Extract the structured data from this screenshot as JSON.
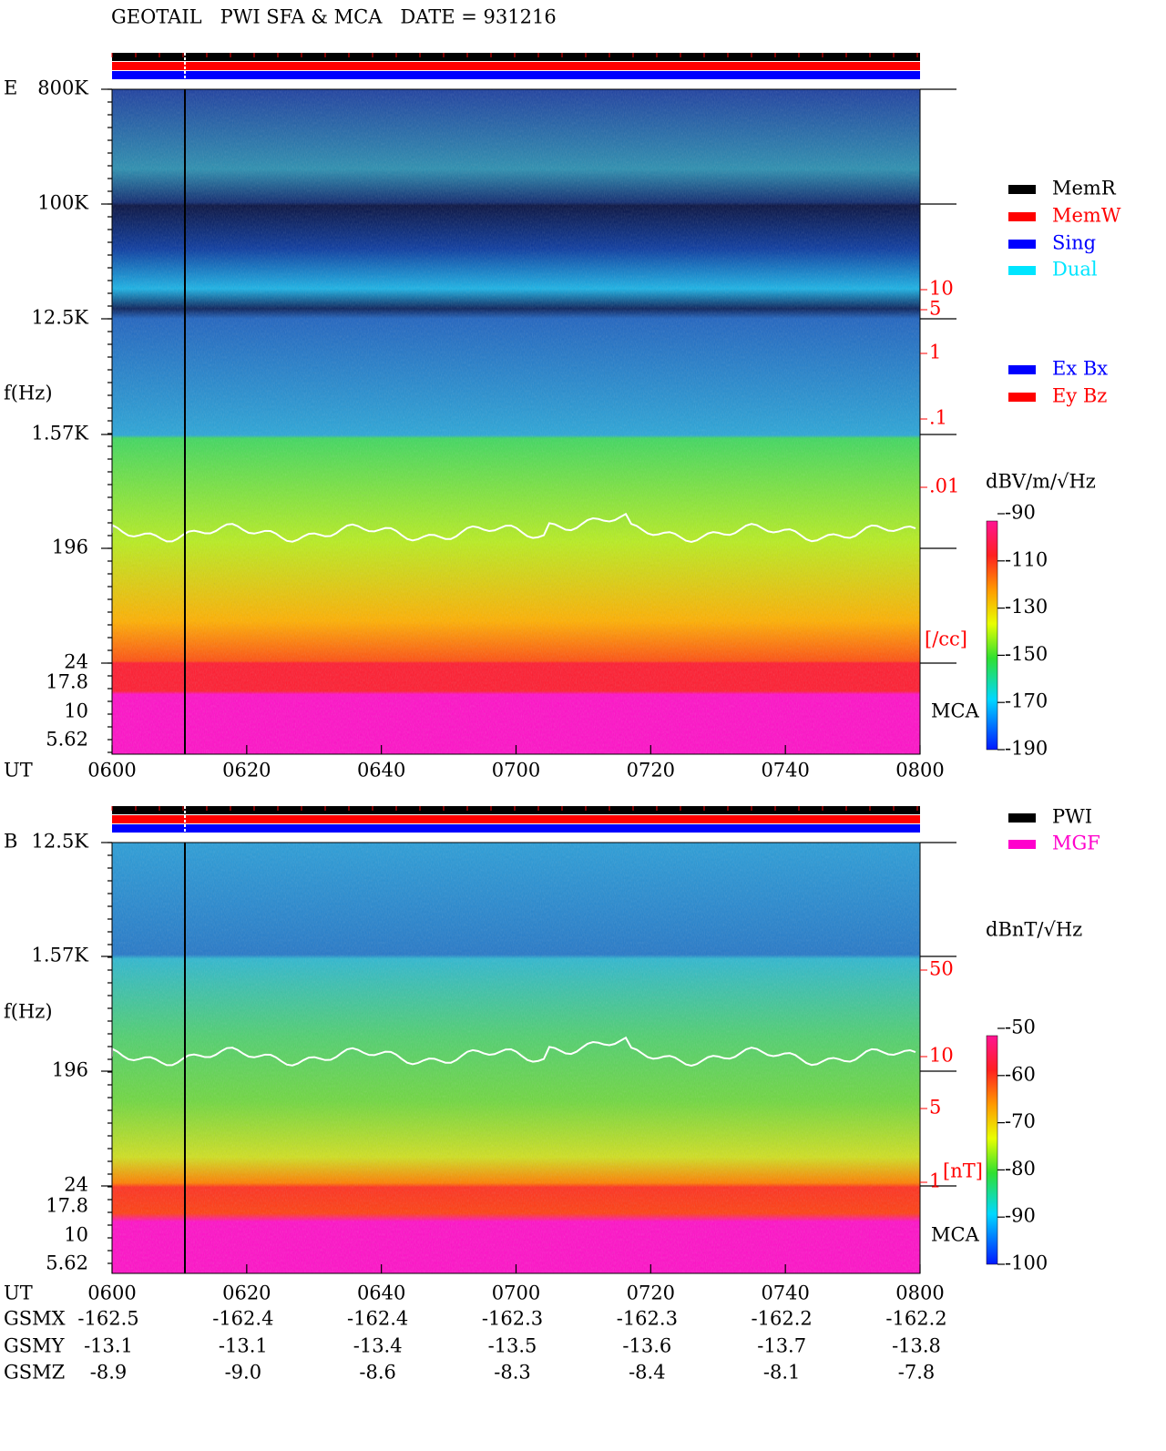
{
  "title": "GEOTAIL   PWI SFA & MCA   DATE = 931216",
  "panels": [
    {
      "label": "E",
      "y_labels": [
        "800K",
        "100K",
        "12.5K",
        "1.57K",
        "196",
        "24",
        "17.8",
        "10",
        "5.62"
      ],
      "y_axis_title": "f(Hz)",
      "right_labels": [
        "10",
        "5",
        "1",
        ".1",
        ".01"
      ],
      "right_unit": "[/cc]",
      "mca_label": "MCA",
      "legends": [
        [
          {
            "label": "MemR",
            "color": "#000000"
          },
          {
            "label": "MemW",
            "color": "#ff0000"
          },
          {
            "label": "Sing",
            "color": "#0000ff"
          },
          {
            "label": "Dual",
            "color": "#00e5ff"
          }
        ],
        [
          {
            "label": "Ex Bx",
            "color": "#0000ff"
          },
          {
            "label": "Ey Bz",
            "color": "#ff0000"
          }
        ]
      ],
      "colorbar": {
        "unit": "dBV/m/√Hz",
        "labels": [
          "-90",
          "-110",
          "-130",
          "-150",
          "-170",
          "-190"
        ]
      }
    },
    {
      "label": "B",
      "y_labels": [
        "12.5K",
        "1.57K",
        "196",
        "24",
        "17.8",
        "10",
        "5.62"
      ],
      "y_axis_title": "f(Hz)",
      "right_labels": [
        "50",
        "10",
        "5",
        "1"
      ],
      "right_unit": "[nT]",
      "mca_label": "MCA",
      "legends": [
        [
          {
            "label": "PWI",
            "color": "#000000"
          },
          {
            "label": "MGF",
            "color": "#ff00cc"
          }
        ]
      ],
      "colorbar": {
        "unit": "dBnT/√Hz",
        "labels": [
          "-50",
          "-60",
          "-70",
          "-80",
          "-90",
          "-100"
        ]
      }
    }
  ],
  "time_axis": {
    "label": "UT",
    "ticks": [
      "0600",
      "0620",
      "0640",
      "0700",
      "0720",
      "0740",
      "0800"
    ]
  },
  "orbit": [
    {
      "label": "GSMX",
      "values": [
        "-162.5",
        "-162.4",
        "-162.4",
        "-162.3",
        "-162.3",
        "-162.2",
        "-162.2"
      ]
    },
    {
      "label": "GSMY",
      "values": [
        "-13.1",
        "-13.1",
        "-13.4",
        "-13.5",
        "-13.6",
        "-13.7",
        "-13.8"
      ]
    },
    {
      "label": "GSMZ",
      "values": [
        "-8.9",
        "-9.0",
        "-8.6",
        "-8.3",
        "-8.4",
        "-8.1",
        "-7.8"
      ]
    }
  ]
}
